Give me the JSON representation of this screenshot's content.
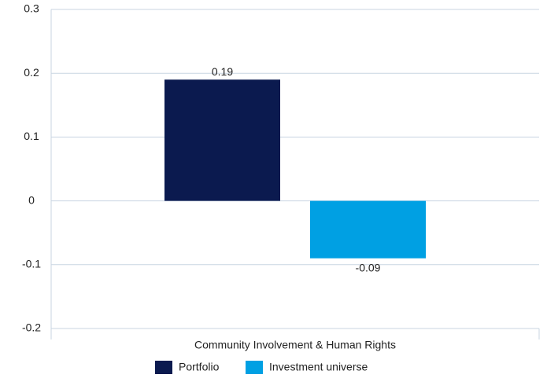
{
  "chart_data": {
    "type": "bar",
    "categories": [
      "Community Involvement & Human Rights"
    ],
    "series": [
      {
        "name": "Portfolio",
        "color": "#0b1a4f",
        "values": [
          0.19
        ]
      },
      {
        "name": "Investment universe",
        "color": "#00a0e3",
        "values": [
          -0.09
        ]
      }
    ],
    "ylim": [
      -0.2,
      0.3
    ],
    "yticks": [
      -0.2,
      -0.1,
      0,
      0.1,
      0.2,
      0.3
    ],
    "grid": true,
    "legend": "bottom"
  }
}
